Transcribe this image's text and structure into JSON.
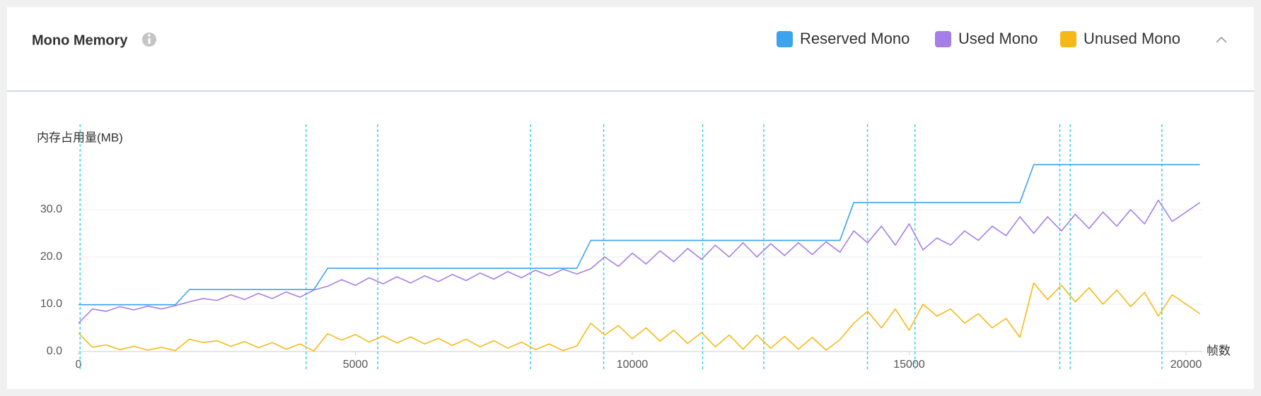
{
  "panel": {
    "title": "Mono Memory"
  },
  "chart_data": {
    "type": "line",
    "y_label": "内存占用量(MB)",
    "x_label": "帧数",
    "xlim": [
      0,
      20300
    ],
    "xticks": [
      0,
      5000,
      10000,
      15000,
      20000
    ],
    "ylim": [
      0,
      40
    ],
    "yticks": [
      {
        "value": 0,
        "label": "0.0"
      },
      {
        "value": 10,
        "label": "10.0"
      },
      {
        "value": 20,
        "label": "20.0"
      },
      {
        "value": 30,
        "label": "30.0"
      }
    ],
    "grid": true,
    "legend": "top-right",
    "markers": [
      29,
      4110,
      5403,
      8163,
      9484,
      11271,
      12375,
      14248,
      15105,
      17720,
      17909,
      19564
    ],
    "marker_color": "#3fd0e8",
    "x": [
      0,
      250,
      500,
      750,
      1000,
      1250,
      1500,
      1750,
      2000,
      2250,
      2500,
      2750,
      3000,
      3250,
      3500,
      3750,
      4000,
      4250,
      4500,
      4750,
      5000,
      5250,
      5500,
      5750,
      6000,
      6250,
      6500,
      6750,
      7000,
      7250,
      7500,
      7750,
      8000,
      8250,
      8500,
      8750,
      9000,
      9250,
      9500,
      9750,
      10000,
      10250,
      10500,
      10750,
      11000,
      11250,
      11500,
      11750,
      12000,
      12250,
      12500,
      12750,
      13000,
      13250,
      13500,
      13750,
      14000,
      14250,
      14500,
      14750,
      15000,
      15250,
      15500,
      15750,
      16000,
      16250,
      16500,
      16750,
      17000,
      17250,
      17500,
      17750,
      18000,
      18250,
      18500,
      18750,
      19000,
      19250,
      19500,
      19750,
      20000,
      20250
    ],
    "series": [
      {
        "name": "Reserved Mono",
        "color": "#3ca3ef",
        "values": [
          9.9,
          9.9,
          9.9,
          9.9,
          9.9,
          9.9,
          9.9,
          9.9,
          13.1,
          13.1,
          13.1,
          13.1,
          13.1,
          13.1,
          13.1,
          13.1,
          13.1,
          13.1,
          17.6,
          17.6,
          17.6,
          17.6,
          17.6,
          17.6,
          17.6,
          17.6,
          17.6,
          17.6,
          17.6,
          17.6,
          17.6,
          17.6,
          17.6,
          17.6,
          17.6,
          17.6,
          17.6,
          23.5,
          23.5,
          23.5,
          23.5,
          23.5,
          23.5,
          23.5,
          23.5,
          23.5,
          23.5,
          23.5,
          23.5,
          23.5,
          23.5,
          23.5,
          23.5,
          23.5,
          23.5,
          23.5,
          31.5,
          31.5,
          31.5,
          31.5,
          31.5,
          31.5,
          31.5,
          31.5,
          31.5,
          31.5,
          31.5,
          31.5,
          31.5,
          39.5,
          39.5,
          39.5,
          39.5,
          39.5,
          39.5,
          39.5,
          39.5,
          39.5,
          39.5,
          39.5,
          39.5,
          39.5
        ]
      },
      {
        "name": "Used Mono",
        "color": "#a57ee8",
        "values": [
          6.0,
          9.0,
          8.5,
          9.5,
          8.8,
          9.6,
          9.0,
          9.7,
          10.5,
          11.2,
          10.8,
          12.0,
          11.0,
          12.3,
          11.2,
          12.6,
          11.5,
          13.0,
          13.8,
          15.2,
          14.0,
          15.6,
          14.3,
          15.8,
          14.5,
          16.0,
          14.8,
          16.3,
          15.0,
          16.6,
          15.3,
          16.9,
          15.6,
          17.2,
          16.0,
          17.4,
          16.4,
          17.5,
          20.0,
          18.0,
          20.8,
          18.5,
          21.3,
          19.0,
          21.8,
          19.5,
          22.5,
          20.0,
          23.0,
          20.0,
          22.8,
          20.3,
          23.0,
          20.5,
          23.2,
          21.0,
          25.5,
          23.0,
          26.5,
          22.5,
          27.0,
          21.5,
          24.0,
          22.5,
          25.5,
          23.5,
          26.5,
          24.5,
          28.5,
          25.0,
          28.5,
          25.5,
          29.0,
          26.0,
          29.5,
          26.5,
          30.0,
          27.0,
          32.0,
          27.5,
          29.5,
          31.5
        ]
      },
      {
        "name": "Unused Mono",
        "color": "#f5b915",
        "values": [
          3.9,
          0.9,
          1.4,
          0.4,
          1.1,
          0.3,
          0.9,
          0.2,
          2.6,
          1.9,
          2.3,
          1.1,
          2.1,
          0.8,
          1.9,
          0.5,
          1.6,
          0.1,
          3.8,
          2.4,
          3.6,
          2.0,
          3.3,
          1.8,
          3.1,
          1.6,
          2.8,
          1.3,
          2.6,
          1.0,
          2.3,
          0.7,
          2.0,
          0.4,
          1.6,
          0.2,
          1.2,
          6.0,
          3.5,
          5.5,
          2.7,
          5.0,
          2.2,
          4.5,
          1.7,
          4.0,
          1.0,
          3.5,
          0.5,
          3.5,
          0.7,
          3.2,
          0.5,
          3.0,
          0.3,
          2.5,
          6.0,
          8.5,
          5.0,
          9.0,
          4.5,
          10.0,
          7.5,
          9.0,
          6.0,
          8.0,
          5.0,
          7.0,
          3.0,
          14.5,
          11.0,
          14.0,
          10.5,
          13.5,
          10.0,
          13.0,
          9.5,
          12.5,
          7.5,
          12.0,
          10.0,
          8.0
        ]
      }
    ]
  }
}
